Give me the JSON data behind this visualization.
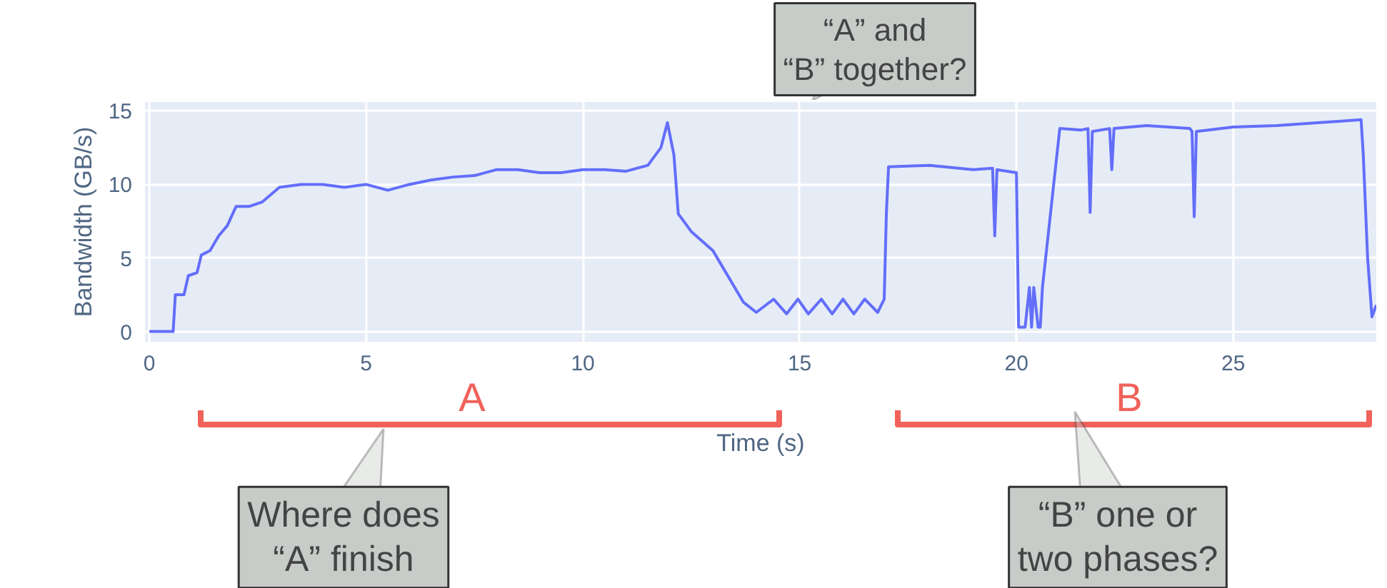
{
  "chart_data": {
    "type": "line",
    "xlabel": "Time (s)",
    "ylabel": "Bandwidth (GB/s)",
    "xlim": [
      -0.1,
      28.3
    ],
    "ylim": [
      -0.7,
      15.6
    ],
    "xticks": [
      0,
      5,
      10,
      15,
      20,
      25
    ],
    "yticks": [
      0,
      5,
      10,
      15
    ],
    "grid": true,
    "marker": "none",
    "line_style": "solid",
    "series": [
      {
        "color": "#636efa",
        "x": [
          0,
          0.55,
          0.6,
          0.8,
          0.9,
          1.1,
          1.2,
          1.4,
          1.6,
          1.8,
          2.0,
          2.3,
          2.6,
          3.0,
          3.5,
          4.0,
          4.5,
          5.0,
          5.5,
          6.0,
          6.5,
          7.0,
          7.5,
          8.0,
          8.5,
          9.0,
          9.5,
          10.0,
          10.5,
          11.0,
          11.5,
          11.8,
          11.95,
          12.1,
          12.2,
          12.5,
          13.0,
          13.3,
          13.7,
          14.0,
          14.4,
          14.7,
          14.96,
          15.2,
          15.5,
          15.75,
          16.0,
          16.25,
          16.5,
          16.8,
          16.95,
          17.0,
          17.05,
          18.0,
          19.0,
          19.45,
          19.5,
          19.55,
          20.0,
          20.05,
          20.2,
          20.3,
          20.35,
          20.4,
          20.5,
          20.55,
          20.6,
          21.0,
          21.5,
          21.65,
          21.7,
          21.75,
          22.15,
          22.2,
          22.25,
          23.0,
          24.0,
          24.05,
          24.1,
          24.15,
          25.0,
          26.0,
          27.0,
          27.5,
          27.95,
          28.0,
          28.1,
          28.2,
          28.3
        ],
        "values": [
          0,
          0,
          2.5,
          2.5,
          3.8,
          4,
          5.2,
          5.5,
          6.5,
          7.2,
          8.5,
          8.5,
          8.8,
          9.8,
          10,
          10,
          9.8,
          10,
          9.6,
          10,
          10.3,
          10.5,
          10.6,
          11,
          11,
          10.8,
          10.8,
          11,
          11,
          10.9,
          11.3,
          12.5,
          14.2,
          12,
          8,
          6.8,
          5.5,
          4,
          2,
          1.3,
          2.2,
          1.2,
          2.2,
          1.2,
          2.2,
          1.2,
          2.2,
          1.2,
          2.2,
          1.3,
          2.2,
          8,
          11.2,
          11.3,
          11,
          11.1,
          6.5,
          11,
          10.8,
          0.3,
          0.3,
          3,
          0.3,
          3,
          0.3,
          0.3,
          3,
          13.8,
          13.7,
          13.8,
          8.1,
          13.6,
          13.8,
          11,
          13.8,
          14,
          13.8,
          13.6,
          7.8,
          13.6,
          13.9,
          14,
          14.2,
          14.3,
          14.4,
          12,
          5,
          1,
          1.8
        ]
      }
    ],
    "annotations": [
      "A",
      "B",
      "“A” and “B” together?",
      "Where does “A” finish",
      "“B” one or two phases?"
    ]
  }
}
